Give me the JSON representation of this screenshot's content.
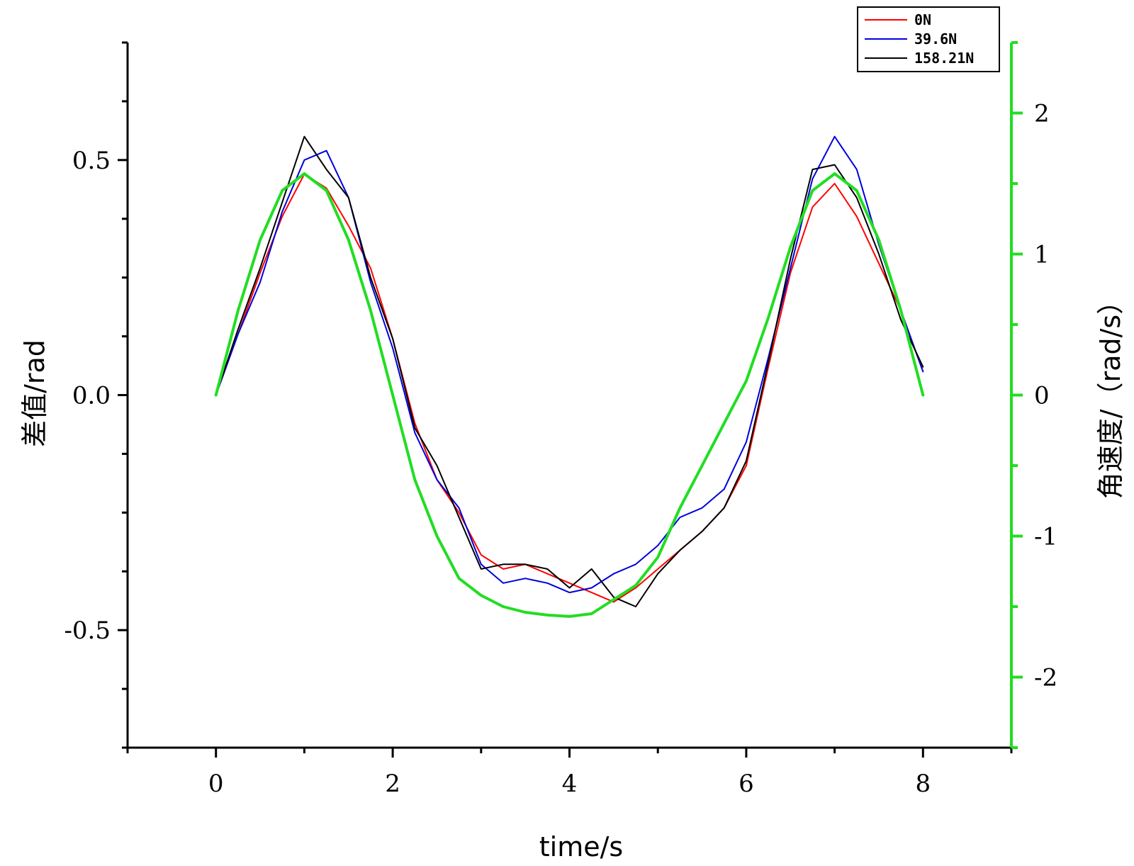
{
  "chart_data": {
    "type": "line",
    "xlabel": "time/s",
    "ylabel": "差值/rad",
    "y2label": "角速度/（rad/s）",
    "xlim": [
      -1,
      9
    ],
    "ylim": [
      -0.75,
      0.75
    ],
    "y2lim": [
      -2.5,
      2.5
    ],
    "xticks": [
      "0",
      "2",
      "4",
      "6",
      "8"
    ],
    "yticks": [
      "0.5",
      "0.0",
      "-0.5"
    ],
    "y2ticks": [
      "2",
      "1",
      "0",
      "-1",
      "-2"
    ],
    "legend_position": "top-right",
    "colors": {
      "axis2": "#22dd22"
    },
    "series": [
      {
        "name": "0N",
        "axis": "left",
        "color": "#ff0000",
        "x": [
          0,
          0.25,
          0.5,
          0.75,
          1.0,
          1.25,
          1.5,
          1.75,
          2.0,
          2.25,
          2.5,
          2.75,
          3.0,
          3.25,
          3.5,
          3.75,
          4.0,
          4.25,
          4.5,
          4.75,
          5.0,
          5.25,
          5.5,
          5.75,
          6.0,
          6.25,
          6.5,
          6.75,
          7.0,
          7.25,
          7.5,
          7.75,
          8.0
        ],
        "y": [
          0.0,
          0.13,
          0.26,
          0.38,
          0.47,
          0.44,
          0.36,
          0.27,
          0.12,
          -0.06,
          -0.18,
          -0.25,
          -0.34,
          -0.37,
          -0.36,
          -0.38,
          -0.4,
          -0.42,
          -0.44,
          -0.41,
          -0.37,
          -0.33,
          -0.29,
          -0.24,
          -0.15,
          0.06,
          0.26,
          0.4,
          0.45,
          0.38,
          0.28,
          0.18,
          0.05
        ]
      },
      {
        "name": "39.6N",
        "axis": "left",
        "color": "#0000dd",
        "x": [
          0,
          0.25,
          0.5,
          0.75,
          1.0,
          1.25,
          1.5,
          1.75,
          2.0,
          2.25,
          2.5,
          2.75,
          3.0,
          3.25,
          3.5,
          3.75,
          4.0,
          4.25,
          4.5,
          4.75,
          5.0,
          5.25,
          5.5,
          5.75,
          6.0,
          6.25,
          6.5,
          6.75,
          7.0,
          7.25,
          7.5,
          7.75,
          8.0
        ],
        "y": [
          0.0,
          0.13,
          0.24,
          0.39,
          0.5,
          0.52,
          0.42,
          0.24,
          0.1,
          -0.08,
          -0.18,
          -0.24,
          -0.36,
          -0.4,
          -0.39,
          -0.4,
          -0.42,
          -0.41,
          -0.38,
          -0.36,
          -0.32,
          -0.26,
          -0.24,
          -0.2,
          -0.1,
          0.08,
          0.27,
          0.46,
          0.55,
          0.48,
          0.32,
          0.18,
          0.05
        ]
      },
      {
        "name": "158.21N",
        "axis": "left",
        "color": "#000000",
        "x": [
          0,
          0.25,
          0.5,
          0.75,
          1.0,
          1.25,
          1.5,
          1.75,
          2.0,
          2.25,
          2.5,
          2.75,
          3.0,
          3.25,
          3.5,
          3.75,
          4.0,
          4.25,
          4.5,
          4.75,
          5.0,
          5.25,
          5.5,
          5.75,
          6.0,
          6.25,
          6.5,
          6.75,
          7.0,
          7.25,
          7.5,
          7.75,
          8.0
        ],
        "y": [
          0.0,
          0.14,
          0.27,
          0.41,
          0.55,
          0.48,
          0.42,
          0.25,
          0.12,
          -0.07,
          -0.15,
          -0.26,
          -0.37,
          -0.36,
          -0.36,
          -0.37,
          -0.41,
          -0.37,
          -0.43,
          -0.45,
          -0.38,
          -0.33,
          -0.29,
          -0.24,
          -0.14,
          0.07,
          0.29,
          0.48,
          0.49,
          0.42,
          0.3,
          0.16,
          0.06
        ]
      },
      {
        "name": "",
        "axis": "right",
        "color": "#22dd22",
        "x": [
          0,
          0.25,
          0.5,
          0.75,
          1.0,
          1.25,
          1.5,
          1.75,
          2.0,
          2.25,
          2.5,
          2.75,
          3.0,
          3.25,
          3.5,
          3.75,
          4.0,
          4.25,
          4.5,
          4.75,
          5.0,
          5.25,
          5.5,
          5.75,
          6.0,
          6.25,
          6.5,
          6.75,
          7.0,
          7.25,
          7.5,
          7.75,
          8.0
        ],
        "y": [
          0.0,
          0.6,
          1.1,
          1.45,
          1.57,
          1.45,
          1.1,
          0.6,
          0.0,
          -0.6,
          -1.0,
          -1.3,
          -1.42,
          -1.5,
          -1.54,
          -1.56,
          -1.57,
          -1.55,
          -1.45,
          -1.35,
          -1.15,
          -0.8,
          -0.5,
          -0.2,
          0.1,
          0.55,
          1.05,
          1.45,
          1.57,
          1.45,
          1.1,
          0.6,
          0.0
        ]
      }
    ]
  }
}
